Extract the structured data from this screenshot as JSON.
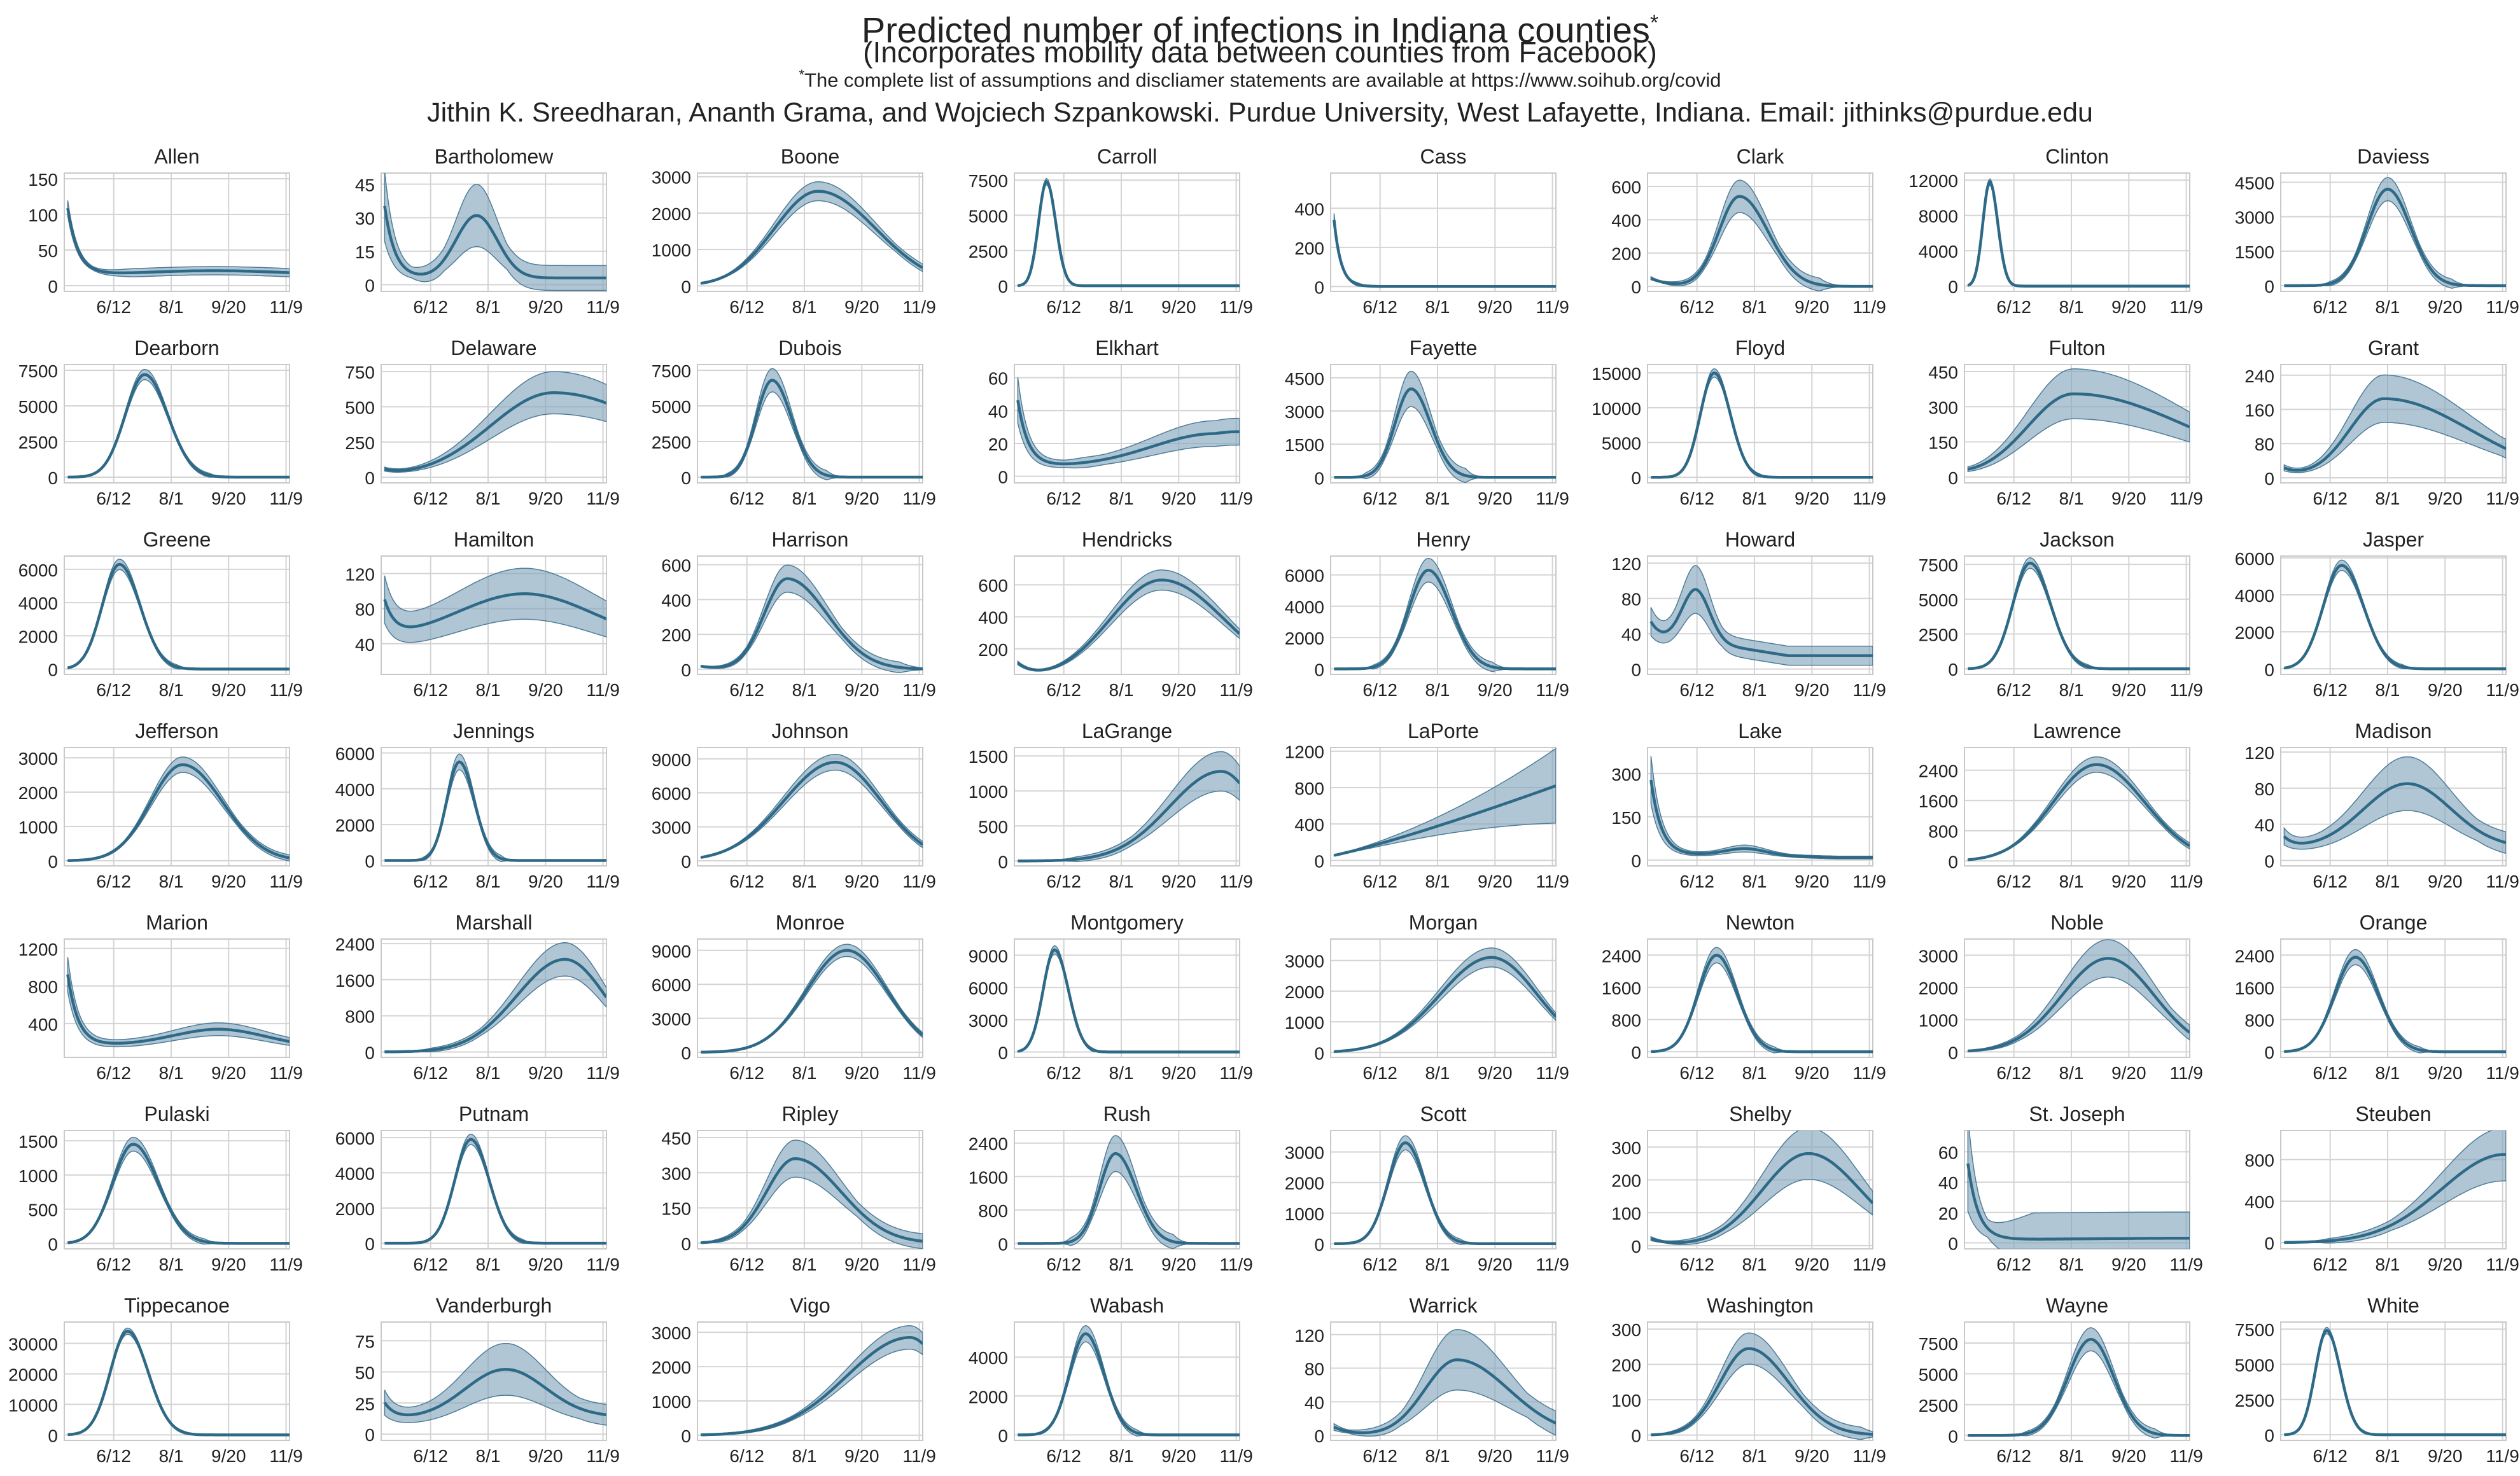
{
  "header": {
    "title": "Predicted number of infections in Indiana counties",
    "title_mark": "*",
    "subtitle": "(Incorporates mobility data between counties from Facebook)",
    "note_mark": "*",
    "note": "The complete list of assumptions and discliamer statements are available at https://www.soihub.org/covid",
    "authors": "Jithin K. Sreedharan, Ananth Grama, and Wojciech Szpankowski. Purdue University, West Lafayette, Indiana. Email: jithinks@purdue.edu"
  },
  "colors": {
    "line": "#2e6a87",
    "band": "#7fa3ba",
    "grid": "#d4d4d4",
    "frame": "#c9c9c9"
  },
  "chart_data": {
    "type": "line",
    "x_label_note": "dates",
    "x_ticks": [
      "6/12",
      "8/1",
      "9/20",
      "11/9"
    ],
    "x_tick_days": [
      43,
      93,
      143,
      193
    ],
    "x_range_days": [
      0,
      196
    ],
    "grid": true,
    "panels": [
      {
        "name": "Allen",
        "yticks": [
          0,
          50,
          100,
          150
        ],
        "ylim": [
          -8,
          158
        ],
        "model": "decay_plateau",
        "peak": 145,
        "tail": 15,
        "plateau": 21,
        "center": 130,
        "width": 60
      },
      {
        "name": "Bartholomew",
        "yticks": [
          0,
          15,
          30,
          45
        ],
        "ylim": [
          -3,
          50
        ],
        "model": "decay_bump",
        "start": 48,
        "bottom": 3,
        "peak": 31,
        "center": 83,
        "width": 18,
        "tail": 3,
        "band": 0.45
      },
      {
        "name": "Boone",
        "yticks": [
          0,
          1000,
          2000,
          3000
        ],
        "ylim": [
          -150,
          3100
        ],
        "model": "asym",
        "peak": 2600,
        "center": 105,
        "wl": 38,
        "wr": 50,
        "band": 0.1
      },
      {
        "name": "Carroll",
        "yticks": [
          0,
          2500,
          5000,
          7500
        ],
        "ylim": [
          -400,
          8000
        ],
        "model": "asym",
        "peak": 7400,
        "center": 28,
        "wl": 7,
        "wr": 8,
        "band": 0.03
      },
      {
        "name": "Cass",
        "yticks": [
          0,
          200,
          400
        ],
        "ylim": [
          -25,
          580
        ],
        "model": "decay",
        "start": 560,
        "rate": 6
      },
      {
        "name": "Clark",
        "yticks": [
          0,
          200,
          400,
          600
        ],
        "ylim": [
          -30,
          680
        ],
        "model": "asym",
        "peak": 540,
        "center": 80,
        "wl": 18,
        "wr": 25,
        "base": 60,
        "band": 0.18
      },
      {
        "name": "Clinton",
        "yticks": [
          0,
          4000,
          8000,
          12000
        ],
        "ylim": [
          -600,
          12800
        ],
        "model": "asym",
        "peak": 11800,
        "center": 22,
        "wl": 6,
        "wr": 7,
        "band": 0.03
      },
      {
        "name": "Daviess",
        "yticks": [
          0,
          1500,
          3000,
          4500
        ],
        "ylim": [
          -250,
          4900
        ],
        "model": "asym",
        "peak": 4200,
        "center": 93,
        "wl": 18,
        "wr": 20,
        "band": 0.12
      },
      {
        "name": "Dearborn",
        "yticks": [
          0,
          2500,
          5000,
          7500
        ],
        "ylim": [
          -400,
          7900
        ],
        "model": "asym",
        "peak": 7200,
        "center": 70,
        "wl": 17,
        "wr": 20,
        "band": 0.05
      },
      {
        "name": "Delaware",
        "yticks": [
          0,
          250,
          500,
          750
        ],
        "ylim": [
          -40,
          800
        ],
        "model": "asym",
        "peak": 600,
        "center": 150,
        "wl": 55,
        "wr": 90,
        "base": 50,
        "band": 0.25
      },
      {
        "name": "Dubois",
        "yticks": [
          0,
          2500,
          5000,
          7500
        ],
        "ylim": [
          -400,
          7900
        ],
        "model": "asym",
        "peak": 6800,
        "center": 65,
        "wl": 14,
        "wr": 17,
        "band": 0.12
      },
      {
        "name": "Elkhart",
        "yticks": [
          0,
          20,
          40,
          60
        ],
        "ylim": [
          -4,
          68
        ],
        "model": "decay_bump",
        "start": 62,
        "bottom": 6,
        "peak": 26,
        "center": 175,
        "width": 55,
        "tail": 22,
        "band": 0.3
      },
      {
        "name": "Fayette",
        "yticks": [
          0,
          1500,
          3000,
          4500
        ],
        "ylim": [
          -250,
          5100
        ],
        "model": "asym",
        "peak": 4000,
        "center": 70,
        "wl": 14,
        "wr": 17,
        "band": 0.2
      },
      {
        "name": "Floyd",
        "yticks": [
          0,
          5000,
          10000,
          15000
        ],
        "ylim": [
          -800,
          16200
        ],
        "model": "asym",
        "peak": 15000,
        "center": 58,
        "wl": 12,
        "wr": 14,
        "band": 0.04
      },
      {
        "name": "Fulton",
        "yticks": [
          0,
          150,
          300,
          450
        ],
        "ylim": [
          -25,
          480
        ],
        "model": "asym",
        "peak": 355,
        "center": 95,
        "wl": 40,
        "wr": 100,
        "base": 10,
        "band": 0.3
      },
      {
        "name": "Grant",
        "yticks": [
          0,
          80,
          160,
          240
        ],
        "ylim": [
          -12,
          265
        ],
        "model": "asym",
        "peak": 185,
        "center": 90,
        "wl": 30,
        "wr": 75,
        "base": 25,
        "band": 0.3
      },
      {
        "name": "Greene",
        "yticks": [
          0,
          2000,
          4000,
          6000
        ],
        "ylim": [
          -320,
          6800
        ],
        "model": "asym",
        "peak": 6300,
        "center": 48,
        "wl": 15,
        "wr": 18,
        "band": 0.05
      },
      {
        "name": "Hamilton",
        "yticks": [
          40,
          80,
          120
        ],
        "ylim": [
          5,
          140
        ],
        "model": "decay_bump",
        "start": 100,
        "bottom": 42,
        "peak": 97,
        "center": 125,
        "width": 60,
        "tail": 40,
        "band": 0.3
      },
      {
        "name": "Harrison",
        "yticks": [
          0,
          200,
          400,
          600
        ],
        "ylim": [
          -30,
          650
        ],
        "model": "asym",
        "peak": 520,
        "center": 78,
        "wl": 20,
        "wr": 35,
        "base": 20,
        "band": 0.15
      },
      {
        "name": "Hendricks",
        "yticks": [
          200,
          400,
          600
        ],
        "ylim": [
          40,
          780
        ],
        "model": "asym",
        "peak": 630,
        "center": 128,
        "wl": 45,
        "wr": 55,
        "base": 120,
        "band": 0.1
      },
      {
        "name": "Henry",
        "yticks": [
          0,
          2000,
          4000,
          6000
        ],
        "ylim": [
          -350,
          7200
        ],
        "model": "asym",
        "peak": 6300,
        "center": 85,
        "wl": 17,
        "wr": 20,
        "band": 0.12
      },
      {
        "name": "Howard",
        "yticks": [
          0,
          40,
          80,
          120
        ],
        "ylim": [
          -6,
          128
        ],
        "model": "decay_bump",
        "start": 62,
        "bottom": 32,
        "peak": 90,
        "center": 42,
        "width": 12,
        "tail": 4,
        "band": 0.3
      },
      {
        "name": "Jackson",
        "yticks": [
          0,
          2500,
          5000,
          7500
        ],
        "ylim": [
          -400,
          8100
        ],
        "model": "asym",
        "peak": 7600,
        "center": 57,
        "wl": 15,
        "wr": 18,
        "band": 0.05
      },
      {
        "name": "Jasper",
        "yticks": [
          0,
          2000,
          4000,
          6000
        ],
        "ylim": [
          -300,
          6100
        ],
        "model": "asym",
        "peak": 5600,
        "center": 53,
        "wl": 16,
        "wr": 19,
        "band": 0.05
      },
      {
        "name": "Jefferson",
        "yticks": [
          0,
          1000,
          2000,
          3000
        ],
        "ylim": [
          -150,
          3300
        ],
        "model": "asym",
        "peak": 2800,
        "center": 103,
        "wl": 28,
        "wr": 35,
        "band": 0.08
      },
      {
        "name": "Jennings",
        "yticks": [
          0,
          2000,
          4000,
          6000
        ],
        "ylim": [
          -300,
          6300
        ],
        "model": "asym",
        "peak": 5500,
        "center": 68,
        "wl": 11,
        "wr": 13,
        "band": 0.08
      },
      {
        "name": "Johnson",
        "yticks": [
          0,
          3000,
          6000,
          9000
        ],
        "ylim": [
          -450,
          10000
        ],
        "model": "asym",
        "peak": 8700,
        "center": 120,
        "wl": 45,
        "wr": 40,
        "band": 0.08
      },
      {
        "name": "LaGrange",
        "yticks": [
          0,
          500,
          1000,
          1500
        ],
        "ylim": [
          -70,
          1620
        ],
        "model": "asym",
        "peak": 1280,
        "center": 180,
        "wl": 45,
        "wr": 30,
        "band": 0.22
      },
      {
        "name": "LaPorte",
        "yticks": [
          0,
          400,
          800,
          1200
        ],
        "ylim": [
          -60,
          1240
        ],
        "model": "linear",
        "y0": 50,
        "y1": 820,
        "band0": 0.05,
        "band1": 0.5
      },
      {
        "name": "Lake",
        "yticks": [
          0,
          150,
          300
        ],
        "ylim": [
          -20,
          390
        ],
        "model": "decay_bump",
        "start": 380,
        "bottom": 18,
        "peak": 40,
        "center": 85,
        "width": 18,
        "tail": 3,
        "band": 0.3
      },
      {
        "name": "Lawrence",
        "yticks": [
          0,
          800,
          1600,
          2400
        ],
        "ylim": [
          -130,
          3000
        ],
        "model": "asym",
        "peak": 2550,
        "center": 115,
        "wl": 38,
        "wr": 42,
        "band": 0.08
      },
      {
        "name": "Madison",
        "yticks": [
          0,
          40,
          80,
          120
        ],
        "ylim": [
          -6,
          125
        ],
        "model": "decay_bump",
        "start": 30,
        "bottom": 13,
        "peak": 85,
        "center": 110,
        "width": 38,
        "tail": 15,
        "band": 0.35
      },
      {
        "name": "Marion",
        "yticks": [
          400,
          800,
          1200
        ],
        "ylim": [
          40,
          1300
        ],
        "model": "decay_bump",
        "start": 1220,
        "bottom": 170,
        "peak": 340,
        "center": 135,
        "width": 40,
        "tail": 140,
        "band": 0.2
      },
      {
        "name": "Marshall",
        "yticks": [
          0,
          800,
          1600,
          2400
        ],
        "ylim": [
          -120,
          2500
        ],
        "model": "asym",
        "peak": 2050,
        "center": 160,
        "wl": 42,
        "wr": 35,
        "band": 0.18
      },
      {
        "name": "Monroe",
        "yticks": [
          0,
          3000,
          6000,
          9000
        ],
        "ylim": [
          -450,
          10000
        ],
        "model": "asym",
        "peak": 9000,
        "center": 130,
        "wl": 35,
        "wr": 35,
        "band": 0.06
      },
      {
        "name": "Montgomery",
        "yticks": [
          0,
          3000,
          6000,
          9000
        ],
        "ylim": [
          -500,
          10500
        ],
        "model": "asym",
        "peak": 9500,
        "center": 35,
        "wl": 10,
        "wr": 12,
        "band": 0.04
      },
      {
        "name": "Morgan",
        "yticks": [
          0,
          1000,
          2000,
          3000
        ],
        "ylim": [
          -160,
          3700
        ],
        "model": "asym",
        "peak": 3100,
        "center": 140,
        "wl": 45,
        "wr": 40,
        "band": 0.1
      },
      {
        "name": "Newton",
        "yticks": [
          0,
          800,
          1600,
          2400
        ],
        "ylim": [
          -140,
          2800
        ],
        "model": "asym",
        "peak": 2400,
        "center": 60,
        "wl": 16,
        "wr": 18,
        "band": 0.08
      },
      {
        "name": "Noble",
        "yticks": [
          0,
          1000,
          2000,
          3000
        ],
        "ylim": [
          -170,
          3500
        ],
        "model": "asym",
        "peak": 2900,
        "center": 125,
        "wl": 40,
        "wr": 40,
        "band": 0.2
      },
      {
        "name": "Orange",
        "yticks": [
          0,
          800,
          1600,
          2400
        ],
        "ylim": [
          -140,
          2800
        ],
        "model": "asym",
        "peak": 2350,
        "center": 65,
        "wl": 18,
        "wr": 20,
        "band": 0.08
      },
      {
        "name": "Pulaski",
        "yticks": [
          0,
          500,
          1000,
          1500
        ],
        "ylim": [
          -80,
          1650
        ],
        "model": "asym",
        "peak": 1450,
        "center": 60,
        "wl": 18,
        "wr": 22,
        "band": 0.07
      },
      {
        "name": "Putnam",
        "yticks": [
          0,
          2000,
          4000,
          6000
        ],
        "ylim": [
          -320,
          6400
        ],
        "model": "asym",
        "peak": 5900,
        "center": 78,
        "wl": 14,
        "wr": 16,
        "band": 0.05
      },
      {
        "name": "Ripley",
        "yticks": [
          0,
          150,
          300,
          450
        ],
        "ylim": [
          -25,
          480
        ],
        "model": "asym",
        "peak": 360,
        "center": 85,
        "wl": 25,
        "wr": 40,
        "band": 0.22
      },
      {
        "name": "Rush",
        "yticks": [
          0,
          800,
          1600,
          2400
        ],
        "ylim": [
          -130,
          2700
        ],
        "model": "asym",
        "peak": 2150,
        "center": 88,
        "wl": 14,
        "wr": 18,
        "band": 0.2
      },
      {
        "name": "Scott",
        "yticks": [
          0,
          1000,
          2000,
          3000
        ],
        "ylim": [
          -170,
          3700
        ],
        "model": "asym",
        "peak": 3300,
        "center": 65,
        "wl": 15,
        "wr": 17,
        "band": 0.07
      },
      {
        "name": "Shelby",
        "yticks": [
          0,
          100,
          200,
          300
        ],
        "ylim": [
          -10,
          350
        ],
        "model": "asym",
        "peak": 280,
        "center": 140,
        "wl": 40,
        "wr": 45,
        "base": 25,
        "band": 0.28
      },
      {
        "name": "St. Joseph",
        "yticks": [
          0,
          20,
          40,
          60
        ],
        "ylim": [
          -4,
          74
        ],
        "model": "decay_plateau",
        "start": 72,
        "tail": 2,
        "plateau": 3,
        "center": 190,
        "width": 90,
        "band": 0.6
      },
      {
        "name": "Steuben",
        "yticks": [
          0,
          400,
          800
        ],
        "ylim": [
          -60,
          1080
        ],
        "model": "asym",
        "peak": 850,
        "center": 195,
        "wl": 55,
        "wr": 40,
        "band": 0.3
      },
      {
        "name": "Tippecanoe",
        "yticks": [
          0,
          10000,
          20000,
          30000
        ],
        "ylim": [
          -1800,
          37000
        ],
        "model": "asym",
        "peak": 34000,
        "center": 55,
        "wl": 15,
        "wr": 18,
        "band": 0.03
      },
      {
        "name": "Vanderburgh",
        "yticks": [
          0,
          25,
          50,
          75
        ],
        "ylim": [
          -5,
          90
        ],
        "model": "decay_bump",
        "start": 30,
        "bottom": 12,
        "peak": 52,
        "center": 108,
        "width": 35,
        "tail": 15,
        "band": 0.4
      },
      {
        "name": "Vigo",
        "yticks": [
          0,
          1000,
          2000,
          3000
        ],
        "ylim": [
          -150,
          3300
        ],
        "model": "asym",
        "peak": 2850,
        "center": 185,
        "wl": 55,
        "wr": 30,
        "band": 0.12
      },
      {
        "name": "Wabash",
        "yticks": [
          0,
          2000,
          4000
        ],
        "ylim": [
          -280,
          5800
        ],
        "model": "asym",
        "peak": 5200,
        "center": 62,
        "wl": 14,
        "wr": 16,
        "band": 0.08
      },
      {
        "name": "Warrick",
        "yticks": [
          0,
          40,
          80,
          120
        ],
        "ylim": [
          -6,
          135
        ],
        "model": "asym",
        "peak": 90,
        "center": 110,
        "wl": 28,
        "wr": 45,
        "base": 12,
        "band": 0.4
      },
      {
        "name": "Washington",
        "yticks": [
          0,
          100,
          200,
          300
        ],
        "ylim": [
          -15,
          320
        ],
        "model": "asym",
        "peak": 245,
        "center": 88,
        "wl": 25,
        "wr": 35,
        "band": 0.18
      },
      {
        "name": "Wayne",
        "yticks": [
          0,
          2500,
          5000,
          7500
        ],
        "ylim": [
          -400,
          9200
        ],
        "model": "asym",
        "peak": 7800,
        "center": 110,
        "wl": 20,
        "wr": 20,
        "band": 0.12
      },
      {
        "name": "White",
        "yticks": [
          0,
          2500,
          5000,
          7500
        ],
        "ylim": [
          -400,
          8000
        ],
        "model": "asym",
        "peak": 7400,
        "center": 40,
        "wl": 10,
        "wr": 12,
        "band": 0.03
      }
    ]
  }
}
